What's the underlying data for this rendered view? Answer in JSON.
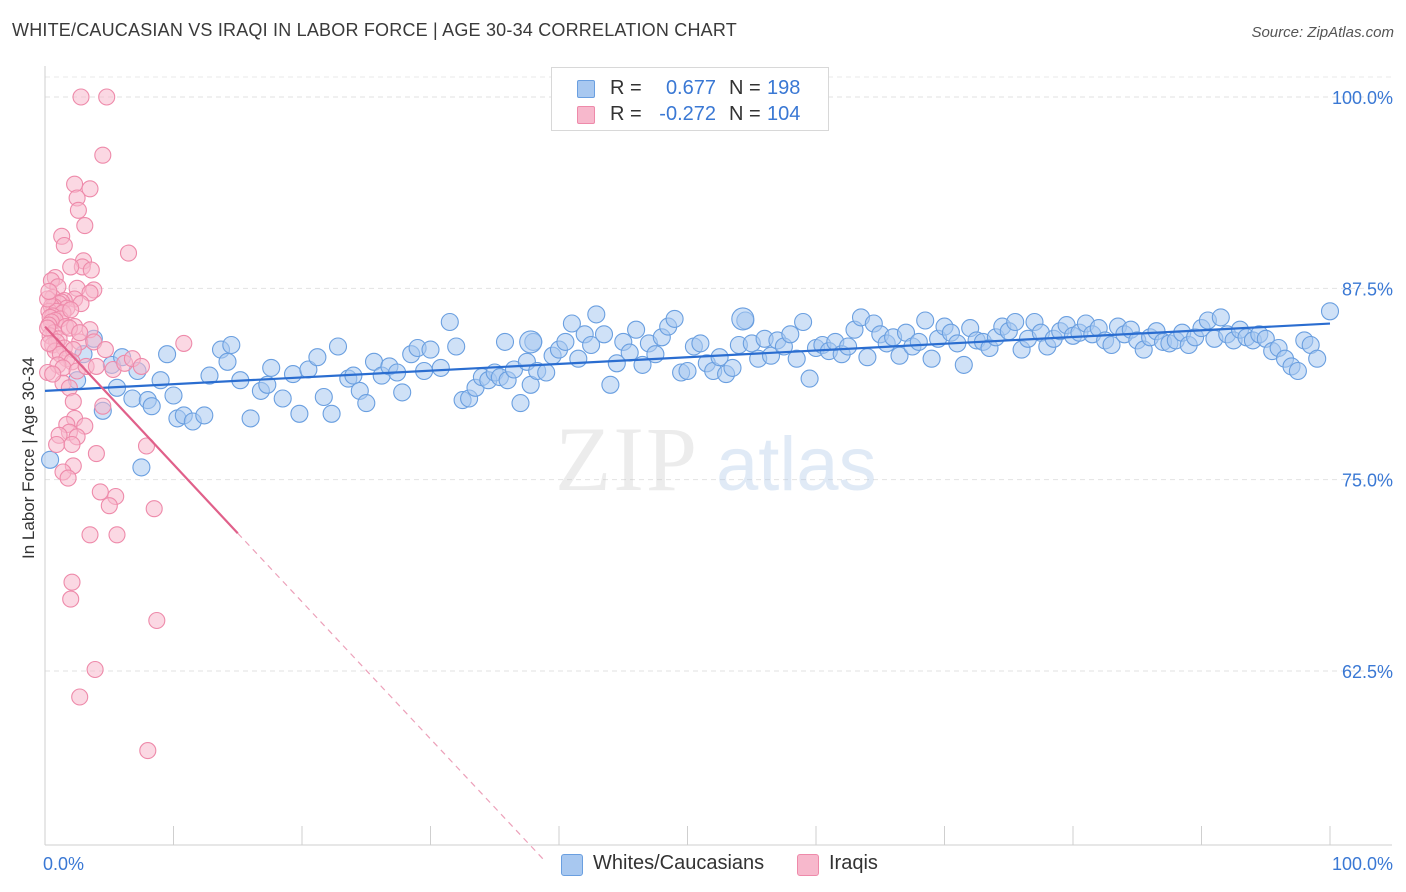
{
  "header": {
    "title": "WHITE/CAUCASIAN VS IRAQI IN LABOR FORCE | AGE 30-34 CORRELATION CHART",
    "source": "Source: ZipAtlas.com"
  },
  "legend": {
    "rows": [
      {
        "r_label": "R =",
        "r_value": "0.677",
        "n_label": "N =",
        "n_value": "198",
        "color": "#a8c8f0",
        "border": "#6a9fe0"
      },
      {
        "r_label": "R =",
        "r_value": "-0.272",
        "n_label": "N =",
        "n_value": "104",
        "color": "#f7b8cc",
        "border": "#ee8aaa"
      }
    ],
    "bottom": [
      {
        "label": "Whites/Caucasians",
        "color": "#a8c8f0",
        "border": "#6a9fe0"
      },
      {
        "label": "Iraqis",
        "color": "#f7b8cc",
        "border": "#ee8aaa"
      }
    ]
  },
  "watermark": {
    "zip": "ZIP",
    "atlas": "atlas"
  },
  "chart_data": {
    "type": "scatter",
    "title": "WHITE/CAUCASIAN VS IRAQI IN LABOR FORCE | AGE 30-34 CORRELATION CHART",
    "xlabel": "",
    "ylabel": "In Labor Force | Age 30-34",
    "x_tick_labels": [
      "0.0%",
      "100.0%"
    ],
    "y_tick_labels": [
      "100.0%",
      "87.5%",
      "75.0%",
      "62.5%"
    ],
    "xlim": [
      0,
      100
    ],
    "ylim": [
      50,
      102
    ],
    "yticks": [
      100,
      87.5,
      75,
      62.5
    ],
    "grid": true,
    "series": [
      {
        "name": "Whites/Caucasians",
        "color": "#6a9fe0",
        "fill": "#a8c8f0",
        "trend": {
          "x": [
            0,
            100
          ],
          "y": [
            80.8,
            85.2
          ],
          "color": "#2a6dd0"
        },
        "points": [
          [
            0.4,
            76.3
          ],
          [
            2.5,
            81.5
          ],
          [
            3.0,
            83.2
          ],
          [
            3.8,
            84.2
          ],
          [
            4.5,
            79.5
          ],
          [
            5.2,
            82.5
          ],
          [
            6.0,
            83.0
          ],
          [
            6.8,
            80.3
          ],
          [
            7.5,
            75.8
          ],
          [
            8.0,
            80.2
          ],
          [
            8.3,
            79.8
          ],
          [
            9.0,
            81.5
          ],
          [
            9.5,
            83.2
          ],
          [
            10.0,
            80.5
          ],
          [
            10.3,
            79.0
          ],
          [
            10.8,
            79.2
          ],
          [
            11.5,
            78.8
          ],
          [
            12.4,
            79.2
          ],
          [
            12.8,
            81.8
          ],
          [
            13.7,
            83.5
          ],
          [
            14.2,
            82.7
          ],
          [
            14.5,
            83.8
          ],
          [
            15.2,
            81.5
          ],
          [
            16.0,
            79.0
          ],
          [
            16.8,
            80.8
          ],
          [
            17.3,
            81.2
          ],
          [
            17.6,
            82.3
          ],
          [
            18.5,
            80.3
          ],
          [
            19.3,
            81.9
          ],
          [
            19.8,
            79.3
          ],
          [
            20.5,
            82.2
          ],
          [
            21.2,
            83.0
          ],
          [
            21.7,
            80.4
          ],
          [
            22.3,
            79.3
          ],
          [
            22.8,
            83.7
          ],
          [
            23.6,
            81.6
          ],
          [
            24.0,
            81.8
          ],
          [
            24.5,
            80.8
          ],
          [
            25.0,
            80.0
          ],
          [
            25.6,
            82.7
          ],
          [
            26.2,
            81.8
          ],
          [
            26.8,
            82.4
          ],
          [
            27.4,
            82.0
          ],
          [
            27.8,
            80.7
          ],
          [
            28.5,
            83.2
          ],
          [
            29.0,
            83.6
          ],
          [
            29.5,
            82.1
          ],
          [
            30.0,
            83.5
          ],
          [
            30.8,
            82.3
          ],
          [
            31.5,
            85.3
          ],
          [
            32.0,
            83.7
          ],
          [
            32.5,
            80.2
          ],
          [
            33.0,
            80.3
          ],
          [
            33.5,
            81.0
          ],
          [
            34.0,
            81.7
          ],
          [
            34.5,
            81.5
          ],
          [
            35.0,
            82.0
          ],
          [
            35.4,
            81.7
          ],
          [
            36.0,
            81.5
          ],
          [
            36.5,
            82.2
          ],
          [
            37.0,
            80.0
          ],
          [
            37.5,
            82.7
          ],
          [
            37.8,
            81.2
          ],
          [
            38.3,
            82.1
          ],
          [
            38.0,
            84.0
          ],
          [
            39.0,
            82.0
          ],
          [
            39.5,
            83.1
          ],
          [
            40.0,
            83.5
          ],
          [
            40.5,
            84.0
          ],
          [
            41.0,
            85.2
          ],
          [
            41.5,
            82.9
          ],
          [
            42.0,
            84.5
          ],
          [
            42.5,
            83.8
          ],
          [
            42.9,
            85.8
          ],
          [
            43.5,
            84.5
          ],
          [
            44.0,
            81.2
          ],
          [
            44.5,
            82.6
          ],
          [
            45.0,
            84.0
          ],
          [
            45.5,
            83.3
          ],
          [
            46.0,
            84.8
          ],
          [
            46.5,
            82.5
          ],
          [
            47.0,
            83.9
          ],
          [
            47.5,
            83.2
          ],
          [
            48.0,
            84.3
          ],
          [
            48.5,
            85.0
          ],
          [
            49.0,
            85.5
          ],
          [
            49.5,
            82.0
          ],
          [
            50.0,
            82.1
          ],
          [
            50.5,
            83.7
          ],
          [
            51.0,
            83.9
          ],
          [
            51.5,
            82.6
          ],
          [
            52.0,
            82.1
          ],
          [
            52.5,
            83.0
          ],
          [
            53.0,
            81.9
          ],
          [
            53.5,
            82.3
          ],
          [
            54.0,
            83.8
          ],
          [
            54.5,
            85.4
          ],
          [
            55.0,
            83.9
          ],
          [
            55.5,
            82.9
          ],
          [
            56.0,
            84.2
          ],
          [
            56.5,
            83.1
          ],
          [
            57.0,
            84.1
          ],
          [
            57.5,
            83.7
          ],
          [
            58.0,
            84.5
          ],
          [
            58.5,
            82.9
          ],
          [
            59.0,
            85.3
          ],
          [
            59.5,
            81.6
          ],
          [
            60.0,
            83.6
          ],
          [
            60.5,
            83.8
          ],
          [
            61.0,
            83.4
          ],
          [
            61.5,
            84.0
          ],
          [
            62.0,
            83.2
          ],
          [
            62.5,
            83.7
          ],
          [
            63.0,
            84.8
          ],
          [
            63.5,
            85.6
          ],
          [
            64.0,
            83.0
          ],
          [
            64.5,
            85.2
          ],
          [
            65.0,
            84.5
          ],
          [
            65.5,
            83.9
          ],
          [
            66.0,
            84.3
          ],
          [
            66.5,
            83.1
          ],
          [
            67.0,
            84.6
          ],
          [
            67.5,
            83.7
          ],
          [
            68.0,
            84.0
          ],
          [
            68.5,
            85.4
          ],
          [
            69.0,
            82.9
          ],
          [
            69.5,
            84.2
          ],
          [
            70.0,
            85.0
          ],
          [
            70.5,
            84.6
          ],
          [
            71.0,
            83.9
          ],
          [
            71.5,
            82.5
          ],
          [
            72.0,
            84.9
          ],
          [
            72.5,
            84.1
          ],
          [
            73.0,
            84.0
          ],
          [
            73.5,
            83.6
          ],
          [
            74.0,
            84.3
          ],
          [
            74.5,
            85.0
          ],
          [
            75.0,
            84.7
          ],
          [
            75.5,
            85.3
          ],
          [
            76.0,
            83.5
          ],
          [
            76.5,
            84.2
          ],
          [
            77.0,
            85.3
          ],
          [
            77.5,
            84.6
          ],
          [
            78.0,
            83.7
          ],
          [
            78.5,
            84.2
          ],
          [
            79.0,
            84.7
          ],
          [
            79.5,
            85.1
          ],
          [
            80.0,
            84.4
          ],
          [
            80.5,
            84.6
          ],
          [
            81.0,
            85.2
          ],
          [
            81.5,
            84.5
          ],
          [
            82.0,
            84.9
          ],
          [
            82.5,
            84.1
          ],
          [
            83.0,
            83.8
          ],
          [
            83.5,
            85.0
          ],
          [
            84.0,
            84.5
          ],
          [
            84.5,
            84.8
          ],
          [
            85.0,
            84.1
          ],
          [
            85.5,
            83.5
          ],
          [
            86.0,
            84.3
          ],
          [
            86.5,
            84.7
          ],
          [
            87.0,
            84.0
          ],
          [
            87.5,
            83.9
          ],
          [
            88.0,
            84.1
          ],
          [
            88.5,
            84.6
          ],
          [
            89.0,
            83.8
          ],
          [
            89.5,
            84.3
          ],
          [
            90.0,
            84.9
          ],
          [
            90.5,
            85.4
          ],
          [
            91.0,
            84.2
          ],
          [
            91.5,
            85.6
          ],
          [
            92.0,
            84.5
          ],
          [
            92.5,
            84.1
          ],
          [
            93.0,
            84.8
          ],
          [
            93.5,
            84.3
          ],
          [
            94.0,
            84.1
          ],
          [
            94.5,
            84.5
          ],
          [
            95.0,
            84.2
          ],
          [
            95.5,
            83.4
          ],
          [
            96.0,
            83.6
          ],
          [
            96.5,
            82.9
          ],
          [
            97.0,
            82.4
          ],
          [
            97.5,
            82.1
          ],
          [
            98.0,
            84.1
          ],
          [
            98.5,
            83.8
          ],
          [
            99.0,
            82.9
          ],
          [
            100.0,
            86.0
          ],
          [
            7.2,
            82.1
          ],
          [
            5.6,
            81.0
          ],
          [
            35.8,
            84.0
          ]
        ],
        "big_points": [
          [
            37.8,
            84.0
          ],
          [
            54.3,
            85.5
          ]
        ]
      },
      {
        "name": "Iraqis",
        "color": "#ee8aaa",
        "fill": "#f7b8cc",
        "trend": {
          "x": [
            0,
            15
          ],
          "y": [
            85.0,
            71.5
          ],
          "color": "#e0608a",
          "dash_to": [
            39,
            50
          ]
        },
        "points": [
          [
            2.8,
            100.0
          ],
          [
            4.8,
            100.0
          ],
          [
            4.5,
            96.2
          ],
          [
            2.3,
            94.3
          ],
          [
            3.5,
            94.0
          ],
          [
            2.5,
            93.4
          ],
          [
            2.6,
            92.6
          ],
          [
            3.1,
            91.6
          ],
          [
            1.3,
            90.9
          ],
          [
            1.5,
            90.3
          ],
          [
            6.5,
            89.8
          ],
          [
            3.0,
            89.3
          ],
          [
            2.9,
            88.9
          ],
          [
            3.6,
            88.7
          ],
          [
            2.0,
            88.9
          ],
          [
            0.8,
            88.2
          ],
          [
            0.5,
            88.0
          ],
          [
            2.5,
            87.5
          ],
          [
            3.8,
            87.4
          ],
          [
            3.5,
            87.2
          ],
          [
            1.0,
            87.6
          ],
          [
            0.6,
            86.9
          ],
          [
            2.3,
            86.8
          ],
          [
            2.8,
            86.5
          ],
          [
            1.5,
            86.7
          ],
          [
            1.3,
            86.6
          ],
          [
            1.1,
            86.5
          ],
          [
            0.7,
            86.3
          ],
          [
            0.5,
            86.3
          ],
          [
            1.7,
            86.2
          ],
          [
            0.3,
            86.0
          ],
          [
            0.9,
            86.0
          ],
          [
            1.4,
            85.9
          ],
          [
            0.6,
            85.7
          ],
          [
            0.4,
            85.6
          ],
          [
            1.2,
            85.5
          ],
          [
            0.8,
            85.4
          ],
          [
            0.5,
            85.3
          ],
          [
            0.3,
            85.1
          ],
          [
            1.6,
            85.0
          ],
          [
            2.3,
            85.0
          ],
          [
            3.5,
            84.8
          ],
          [
            0.7,
            84.6
          ],
          [
            0.4,
            84.4
          ],
          [
            1.1,
            84.2
          ],
          [
            0.9,
            84.0
          ],
          [
            0.6,
            83.8
          ],
          [
            2.7,
            84.0
          ],
          [
            3.8,
            84.0
          ],
          [
            1.5,
            83.6
          ],
          [
            0.8,
            83.4
          ],
          [
            1.2,
            83.2
          ],
          [
            2.2,
            83.5
          ],
          [
            4.7,
            83.5
          ],
          [
            1.7,
            82.9
          ],
          [
            2.1,
            82.7
          ],
          [
            1.0,
            82.5
          ],
          [
            1.4,
            82.3
          ],
          [
            2.5,
            82.1
          ],
          [
            3.2,
            82.4
          ],
          [
            4.0,
            82.4
          ],
          [
            5.3,
            82.2
          ],
          [
            6.2,
            82.6
          ],
          [
            6.8,
            82.9
          ],
          [
            7.5,
            82.4
          ],
          [
            10.8,
            83.9
          ],
          [
            1.4,
            81.3
          ],
          [
            1.9,
            81.0
          ],
          [
            2.2,
            80.1
          ],
          [
            4.5,
            79.8
          ],
          [
            2.3,
            79.0
          ],
          [
            3.1,
            78.5
          ],
          [
            1.7,
            78.6
          ],
          [
            1.9,
            78.1
          ],
          [
            1.1,
            77.9
          ],
          [
            2.5,
            77.8
          ],
          [
            0.9,
            77.3
          ],
          [
            7.9,
            77.2
          ],
          [
            2.1,
            77.3
          ],
          [
            4.0,
            76.7
          ],
          [
            2.2,
            75.9
          ],
          [
            1.4,
            75.5
          ],
          [
            1.8,
            75.1
          ],
          [
            4.3,
            74.2
          ],
          [
            5.5,
            73.9
          ],
          [
            5.0,
            73.3
          ],
          [
            8.5,
            73.1
          ],
          [
            3.5,
            71.4
          ],
          [
            5.6,
            71.4
          ],
          [
            2.1,
            68.3
          ],
          [
            2.0,
            67.2
          ],
          [
            8.7,
            65.8
          ],
          [
            3.9,
            62.6
          ],
          [
            2.7,
            60.8
          ],
          [
            8.0,
            57.3
          ],
          [
            0.2,
            82.0
          ],
          [
            0.3,
            83.9
          ],
          [
            0.2,
            84.9
          ],
          [
            0.2,
            86.8
          ],
          [
            0.3,
            87.3
          ],
          [
            2.0,
            86.1
          ],
          [
            1.9,
            84.9
          ],
          [
            2.7,
            84.6
          ],
          [
            0.6,
            81.9
          ]
        ]
      }
    ]
  }
}
